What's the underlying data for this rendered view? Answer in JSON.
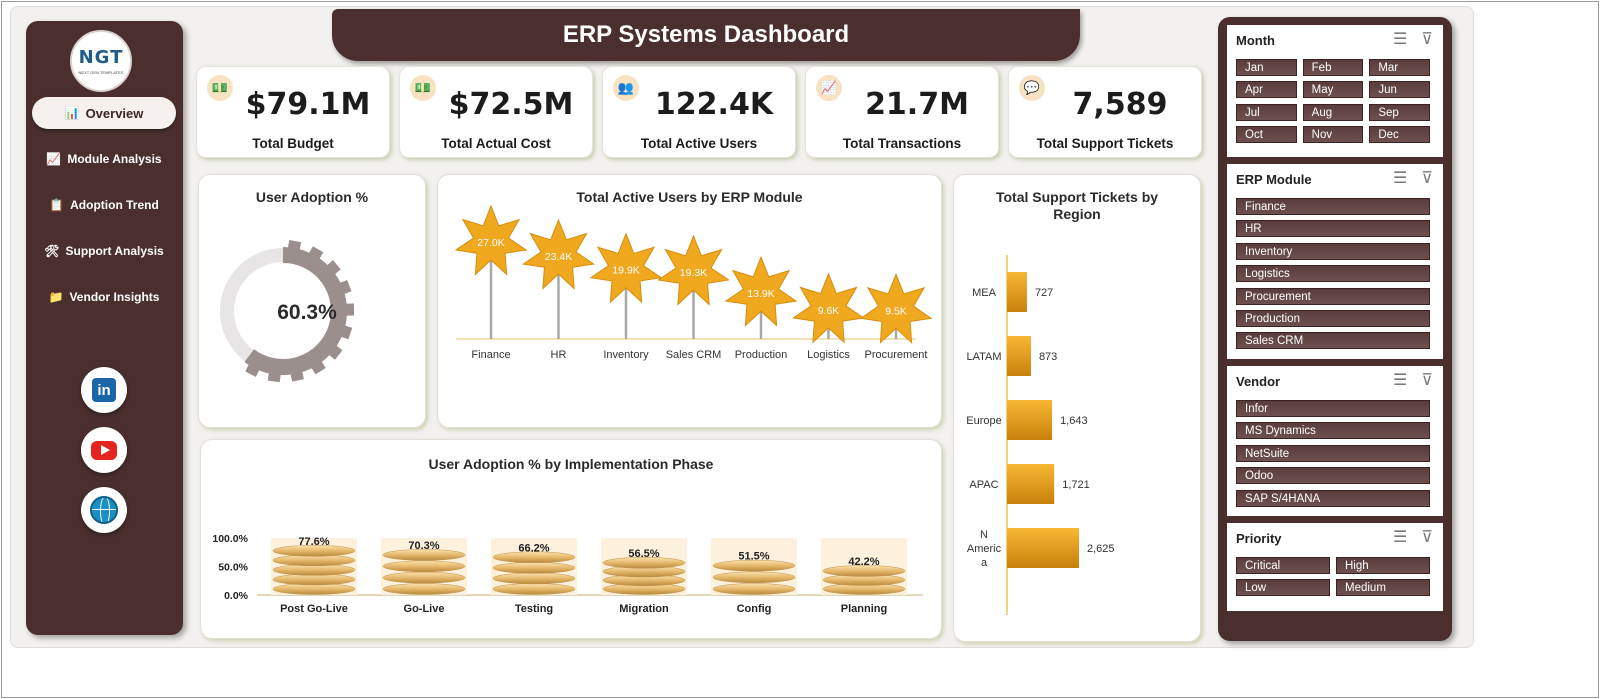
{
  "title": "ERP Systems Dashboard",
  "logo": {
    "text": "NGT",
    "subtext": "NEXT GEN TEMPLATES"
  },
  "nav": [
    {
      "label": "Overview",
      "icon": "📊",
      "active": true
    },
    {
      "label": "Module Analysis",
      "icon": "📈",
      "active": false
    },
    {
      "label": "Adoption Trend",
      "icon": "📋",
      "active": false
    },
    {
      "label": "Support Analysis",
      "icon": "🛠",
      "active": false
    },
    {
      "label": "Vendor Insights",
      "icon": "📁",
      "active": false
    }
  ],
  "social": [
    {
      "name": "linkedin",
      "label": "in"
    },
    {
      "name": "youtube",
      "label": ""
    },
    {
      "name": "website",
      "label": ""
    }
  ],
  "kpis": [
    {
      "value": "$79.1M",
      "label": "Total Budget",
      "icon": "💵"
    },
    {
      "value": "$72.5M",
      "label": "Total Actual Cost",
      "icon": "💵"
    },
    {
      "value": "122.4K",
      "label": "Total Active Users",
      "icon": "👥"
    },
    {
      "value": "21.7M",
      "label": "Total Transactions",
      "icon": "📈"
    },
    {
      "value": "7,589",
      "label": "Total Support Tickets",
      "icon": "💬"
    }
  ],
  "colors": {
    "brown": "#4b2f2f",
    "accent": "#f0a81e",
    "accent_dark": "#c97f0a",
    "gear": "#9a8f8d"
  },
  "chart_data": [
    {
      "type": "pie",
      "title": "User Adoption %",
      "values": [
        60.3
      ],
      "label": "60.3%"
    },
    {
      "type": "scatter",
      "title": "Total Active Users by ERP Module",
      "categories": [
        "Finance",
        "HR",
        "Inventory",
        "Sales CRM",
        "Production",
        "Logistics",
        "Procurement"
      ],
      "values": [
        27.0,
        23.4,
        19.9,
        19.3,
        13.9,
        9.6,
        9.5
      ],
      "data_labels": [
        "27.0K",
        "23.4K",
        "19.9K",
        "19.3K",
        "13.9K",
        "9.6K",
        "9.5K"
      ]
    },
    {
      "type": "bar",
      "title": "User Adoption % by Implementation Phase",
      "categories": [
        "Post Go-Live",
        "Go-Live",
        "Testing",
        "Migration",
        "Config",
        "Planning"
      ],
      "values": [
        77.6,
        70.3,
        66.2,
        56.5,
        51.5,
        42.2
      ],
      "data_labels": [
        "77.6%",
        "70.3%",
        "66.2%",
        "56.5%",
        "51.5%",
        "42.2%"
      ],
      "y_ticks": [
        "100.0%",
        "50.0%",
        "0.0%"
      ],
      "ylim": [
        0,
        100
      ]
    },
    {
      "type": "bar",
      "title": "Total Support Tickets by Region",
      "categories": [
        "MEA",
        "LATAM",
        "Europe",
        "APAC",
        "N America"
      ],
      "category_lines": [
        [
          "MEA"
        ],
        [
          "LATAM"
        ],
        [
          "Europe"
        ],
        [
          "APAC"
        ],
        [
          "N",
          "Americ",
          "a"
        ]
      ],
      "values": [
        727,
        873,
        1643,
        1721,
        2625
      ],
      "data_labels": [
        "727",
        "873",
        "1,643",
        "1,721",
        "2,625"
      ]
    }
  ],
  "slicers": [
    {
      "name": "month",
      "title": "Month",
      "columns": 3,
      "items": [
        "Jan",
        "Feb",
        "Mar",
        "Apr",
        "May",
        "Jun",
        "Jul",
        "Aug",
        "Sep",
        "Oct",
        "Nov",
        "Dec"
      ]
    },
    {
      "name": "erp-module",
      "title": "ERP Module",
      "columns": 1,
      "items": [
        "Finance",
        "HR",
        "Inventory",
        "Logistics",
        "Procurement",
        "Production",
        "Sales CRM"
      ]
    },
    {
      "name": "vendor",
      "title": "Vendor",
      "columns": 1,
      "items": [
        "Infor",
        "MS Dynamics",
        "NetSuite",
        "Odoo",
        "SAP S/4HANA"
      ]
    },
    {
      "name": "priority",
      "title": "Priority",
      "columns": 2,
      "items": [
        "Critical",
        "High",
        "Low",
        "Medium"
      ]
    }
  ]
}
